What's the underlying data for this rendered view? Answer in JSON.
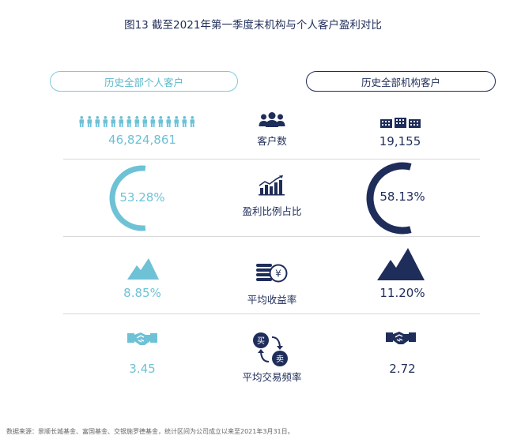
{
  "title": "图13  截至2021年第一季度末机构与个人客户盈利对比",
  "headers": {
    "individual": "历史全部个人客户",
    "institution": "历史全部机构客户"
  },
  "rows": [
    {
      "label": "客户数",
      "icon": "people-group-icon",
      "individual": "46,824,861",
      "institution": "19,155"
    },
    {
      "label": "盈利比例占比",
      "icon": "rising-bar-chart-icon",
      "individual": "53.28%",
      "institution": "58.13%"
    },
    {
      "label": "平均收益率",
      "icon": "coin-stack-yen-icon",
      "individual": "8.85%",
      "institution": "11.20%"
    },
    {
      "label": "平均交易频率",
      "icon": "buy-sell-exchange-icon",
      "individual": "3.45",
      "institution": "2.72"
    }
  ],
  "exchange_icon": {
    "buy": "买",
    "sell": "卖"
  },
  "colors": {
    "individual": "#6ec2d6",
    "institution": "#1f2d5a",
    "divider": "#d9d9d9"
  },
  "profit_ratio": {
    "individual": 0.5328,
    "institution": 0.5813
  },
  "footnote": "数据来源：景顺长城基金、富国基金、交银施罗德基金，统计区间为公司成立以来至2021年3月31日。"
}
